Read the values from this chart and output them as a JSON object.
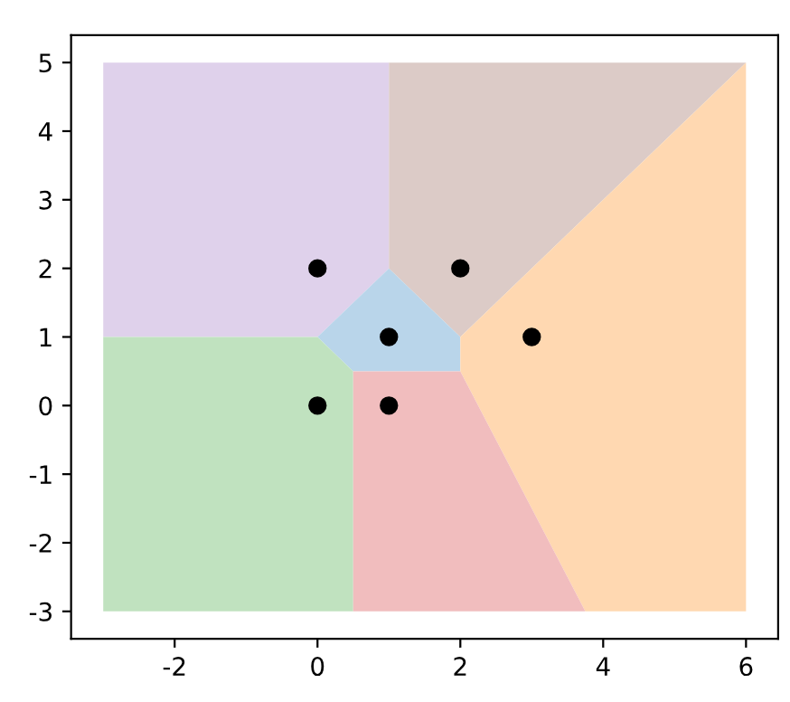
{
  "chart_data": {
    "type": "scatter",
    "x": [
      0,
      2,
      1,
      3,
      0,
      1
    ],
    "series": [
      {
        "color": "#000000",
        "values": [
          2,
          2,
          1,
          1,
          0,
          0
        ]
      }
    ],
    "colors": [
      "#dfd1eb",
      "#dccbc7",
      "#b9d5ea",
      "#ffd8b1",
      "#c0e2bf",
      "#f1bdbe"
    ],
    "marker": "circle",
    "xlim": [
      -3.45,
      6.45
    ],
    "ylim": [
      -3.4,
      5.4
    ],
    "xticks": [
      -2,
      0,
      2,
      4,
      6
    ],
    "yticks": [
      -3,
      -2,
      -1,
      0,
      1,
      2,
      3,
      4,
      5
    ],
    "grid": false,
    "legend": false
  }
}
